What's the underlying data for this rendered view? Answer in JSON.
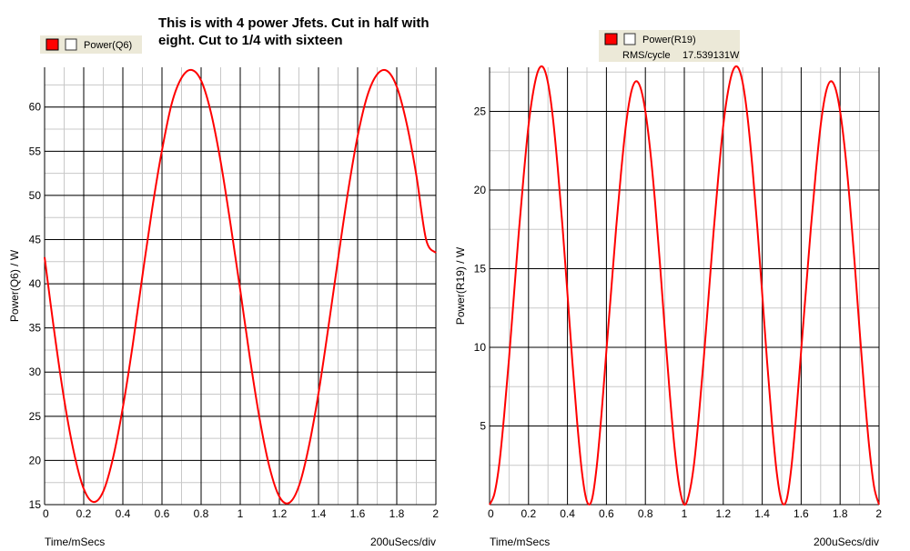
{
  "annotation": {
    "line1": "This is with 4 power Jfets. Cut in half with",
    "line2": "eight. Cut to 1/4 with sixteen"
  },
  "colors": {
    "trace": "#ff0000",
    "major_grid": "#000000",
    "minor_grid": "#c8c8c8",
    "legend_bg": "#ece9d8"
  },
  "chart_data": [
    {
      "type": "line",
      "title": "",
      "xlabel": "Time/mSecs",
      "ylabel": "Power(Q6) / W",
      "scale_label": "200uSecs/div",
      "xlim": [
        0,
        2
      ],
      "ylim": [
        15,
        64.5
      ],
      "x_ticks": [
        "0",
        "0.2",
        "0.4",
        "0.6",
        "0.8",
        "1",
        "1.2",
        "1.4",
        "1.6",
        "1.8",
        "2"
      ],
      "y_ticks": [
        "15",
        "20",
        "25",
        "30",
        "35",
        "40",
        "45",
        "50",
        "55",
        "60"
      ],
      "grid": true,
      "legend": {
        "label": "Power(Q6)",
        "placement": "top-left"
      },
      "series": [
        {
          "name": "Power(Q6)",
          "x": [
            0,
            0.05,
            0.1,
            0.15,
            0.2,
            0.25,
            0.3,
            0.35,
            0.4,
            0.45,
            0.5,
            0.55,
            0.6,
            0.65,
            0.7,
            0.75,
            0.8,
            0.85,
            0.9,
            0.95,
            1.0,
            1.05,
            1.1,
            1.15,
            1.2,
            1.25,
            1.3,
            1.35,
            1.4,
            1.45,
            1.5,
            1.55,
            1.6,
            1.65,
            1.7,
            1.75,
            1.8,
            1.85,
            1.9,
            1.95,
            2.0
          ],
          "values": [
            43.0,
            34.5,
            26.9,
            20.9,
            16.8,
            15.3,
            16.5,
            20.3,
            26.0,
            33.0,
            40.9,
            48.5,
            55.1,
            60.4,
            63.3,
            64.2,
            63.0,
            59.4,
            53.8,
            46.8,
            39.3,
            31.5,
            24.6,
            19.2,
            15.9,
            15.2,
            17.1,
            21.5,
            27.6,
            35.0,
            42.8,
            50.3,
            56.7,
            61.3,
            63.7,
            64.1,
            62.3,
            58.2,
            52.3,
            45.0,
            43.5
          ]
        }
      ]
    },
    {
      "type": "line",
      "title": "",
      "xlabel": "Time/mSecs",
      "ylabel": "Power(R19) / W",
      "scale_label": "200uSecs/div",
      "xlim": [
        0,
        2
      ],
      "ylim": [
        0,
        27.8
      ],
      "x_ticks": [
        "0",
        "0.2",
        "0.4",
        "0.6",
        "0.8",
        "1",
        "1.2",
        "1.4",
        "1.6",
        "1.8",
        "2"
      ],
      "y_ticks": [
        "5",
        "10",
        "15",
        "20",
        "25"
      ],
      "grid": true,
      "legend": {
        "label": "Power(R19)",
        "measure_label": "RMS/cycle",
        "measure_value": "17.539131W",
        "placement": "top-right"
      },
      "series": [
        {
          "name": "Power(R19)",
          "x": [
            0,
            0.025,
            0.05,
            0.075,
            0.1,
            0.125,
            0.15,
            0.175,
            0.2,
            0.225,
            0.25,
            0.275,
            0.3,
            0.325,
            0.35,
            0.375,
            0.4,
            0.425,
            0.45,
            0.475,
            0.5,
            0.525,
            0.55,
            0.575,
            0.6,
            0.625,
            0.65,
            0.675,
            0.7,
            0.725,
            0.75,
            0.775,
            0.8,
            0.825,
            0.85,
            0.875,
            0.9,
            0.925,
            0.95,
            0.975,
            1.0,
            1.025,
            1.05,
            1.075,
            1.1,
            1.125,
            1.15,
            1.175,
            1.2,
            1.225,
            1.25,
            1.275,
            1.3,
            1.325,
            1.35,
            1.375,
            1.4,
            1.425,
            1.45,
            1.475,
            1.5,
            1.525,
            1.55,
            1.575,
            1.6,
            1.625,
            1.65,
            1.675,
            1.7,
            1.725,
            1.75,
            1.775,
            1.8,
            1.825,
            1.85,
            1.875,
            1.9,
            1.925,
            1.95,
            1.975,
            2.0
          ],
          "values": [
            0.0,
            0.7,
            2.6,
            5.7,
            9.3,
            13.3,
            17.3,
            20.9,
            24.1,
            26.3,
            27.6,
            27.8,
            26.8,
            24.6,
            21.4,
            17.6,
            13.4,
            9.1,
            5.2,
            2.0,
            0.2,
            0.3,
            2.4,
            5.8,
            9.8,
            13.7,
            17.6,
            21.1,
            24.1,
            26.1,
            26.9,
            26.5,
            25.0,
            22.5,
            19.2,
            15.3,
            11.1,
            7.1,
            3.6,
            1.1,
            0.0,
            0.7,
            2.6,
            5.7,
            9.3,
            13.3,
            17.3,
            20.9,
            24.1,
            26.3,
            27.6,
            27.8,
            26.8,
            24.6,
            21.4,
            17.6,
            13.4,
            9.1,
            5.2,
            2.0,
            0.2,
            0.3,
            2.4,
            5.8,
            9.8,
            13.7,
            17.6,
            21.1,
            24.1,
            26.1,
            26.9,
            26.5,
            25.0,
            22.5,
            19.2,
            15.3,
            11.1,
            7.1,
            3.6,
            1.1,
            0.0
          ]
        }
      ]
    }
  ]
}
